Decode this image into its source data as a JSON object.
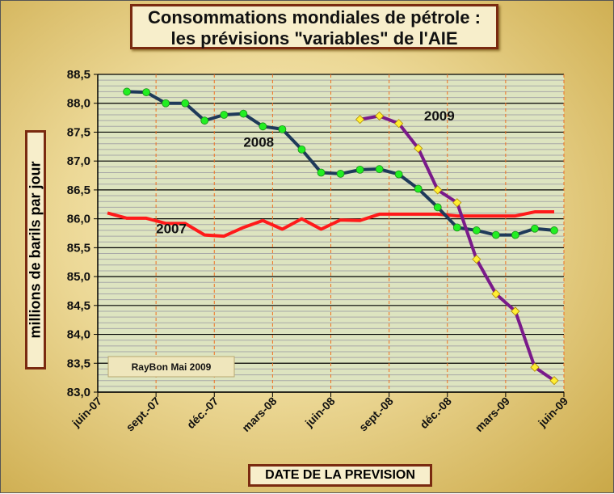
{
  "chart_data": {
    "type": "line",
    "title": "Consommations mondiales de pétrole : les prévisions \"variables\" de l'AIE",
    "title_lines": [
      "Consommations mondiales de pétrole :",
      "les prévisions \"variables\" de l'AIE"
    ],
    "xlabel": "DATE DE LA PREVISION",
    "ylabel": "millions de barils par jour",
    "ylim": [
      83.0,
      88.5
    ],
    "yticks": [
      "83,0",
      "83,5",
      "84,0",
      "84,5",
      "85,0",
      "85,5",
      "86,0",
      "86,5",
      "87,0",
      "87,5",
      "88,0",
      "88,5"
    ],
    "xticks": [
      "juin-07",
      "sept.-07",
      "déc.-07",
      "mars-08",
      "juin-08",
      "sept.-08",
      "déc.-08",
      "mars-09",
      "juin-09"
    ],
    "x_unit": "months since juin-07",
    "xlim": [
      0,
      24
    ],
    "annotation": "RayBon Mai 2009",
    "series": [
      {
        "name": "2007",
        "color": "#ff1a1a",
        "marker": "none",
        "label_pos": [
          3,
          85.75
        ],
        "x": [
          0.5,
          1.5,
          2.5,
          3.5,
          4.5,
          5.5,
          6.5,
          7.5,
          8.5,
          9.5,
          10.5,
          11.5,
          12.5,
          13.5,
          14.5,
          15.5,
          16.5,
          17.5,
          18.5,
          19.5,
          20.5,
          21.5,
          22.5,
          23.5
        ],
        "y": [
          86.1,
          86.01,
          86.01,
          85.92,
          85.92,
          85.72,
          85.7,
          85.85,
          85.97,
          85.82,
          86.0,
          85.82,
          85.98,
          85.97,
          86.08,
          86.08,
          86.08,
          86.08,
          86.05,
          86.05,
          86.05,
          86.05,
          86.12,
          86.12
        ]
      },
      {
        "name": "2008",
        "color": "#1f3a5a",
        "marker": "circle",
        "marker_color": "#22ee22",
        "label_pos": [
          7.5,
          87.25
        ],
        "x": [
          1.5,
          2.5,
          3.5,
          4.5,
          5.5,
          6.5,
          7.5,
          8.5,
          9.5,
          10.5,
          11.5,
          12.5,
          13.5,
          14.5,
          15.5,
          16.5,
          17.5,
          18.5,
          19.5,
          20.5,
          21.5,
          22.5,
          23.5
        ],
        "y": [
          88.2,
          88.19,
          88.0,
          88.0,
          87.7,
          87.8,
          87.82,
          87.6,
          87.55,
          87.2,
          86.8,
          86.78,
          86.85,
          86.86,
          86.77,
          86.52,
          86.2,
          85.85,
          85.8,
          85.72,
          85.72,
          85.83,
          85.8
        ]
      },
      {
        "name": "2009",
        "color": "#7a1a8a",
        "marker": "diamond",
        "marker_color": "#ffee33",
        "label_pos": [
          16.8,
          87.7
        ],
        "x": [
          13.5,
          14.5,
          15.5,
          16.5,
          17.5,
          18.5,
          19.5,
          20.5,
          21.5,
          22.5,
          23.5
        ],
        "y": [
          87.72,
          87.78,
          87.65,
          87.22,
          86.5,
          86.28,
          85.3,
          84.7,
          84.4,
          83.43,
          83.2
        ]
      }
    ]
  }
}
